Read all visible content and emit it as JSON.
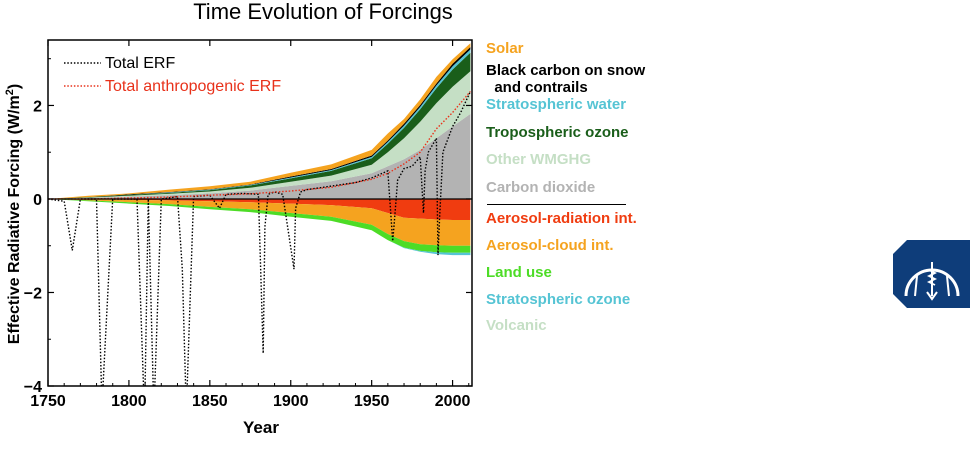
{
  "chart_data": {
    "type": "area",
    "title": "Time Evolution of Forcings",
    "xlabel": "Year",
    "ylabel": "Effective Radiative Forcing (W/m",
    "ylabel_sup": "2",
    "ylabel_close": ")",
    "xlim": [
      1750,
      2012
    ],
    "ylim": [
      -4,
      3.4
    ],
    "xticks": [
      1750,
      1800,
      1850,
      1900,
      1950,
      2000
    ],
    "xtick_labels": [
      "1750",
      "1800",
      "1850",
      "1900",
      "1950",
      "2000"
    ],
    "yticks": [
      -4,
      -2,
      0,
      2
    ],
    "ytick_labels": [
      "−4",
      "−2",
      "0",
      "2"
    ],
    "x": [
      1750,
      1775,
      1800,
      1825,
      1850,
      1875,
      1900,
      1925,
      1950,
      1960,
      1970,
      1980,
      1990,
      2000,
      2011
    ],
    "positive_series": [
      {
        "name": "Carbon dioxide",
        "color": "#b3b3b3",
        "values": [
          0.0,
          0.02,
          0.05,
          0.08,
          0.12,
          0.18,
          0.28,
          0.38,
          0.55,
          0.7,
          0.85,
          1.05,
          1.3,
          1.55,
          1.82
        ]
      },
      {
        "name": "Other WMGHG",
        "color": "#c5dfc5",
        "values": [
          0.0,
          0.01,
          0.02,
          0.03,
          0.04,
          0.06,
          0.09,
          0.12,
          0.18,
          0.3,
          0.45,
          0.6,
          0.75,
          0.85,
          0.91
        ]
      },
      {
        "name": "Tropospheric ozone",
        "color": "#1a5e1a",
        "values": [
          0.0,
          0.01,
          0.02,
          0.02,
          0.03,
          0.05,
          0.07,
          0.1,
          0.14,
          0.18,
          0.22,
          0.27,
          0.32,
          0.37,
          0.4
        ]
      },
      {
        "name": "Stratospheric water",
        "color": "#55c4d4",
        "values": [
          0.0,
          0.0,
          0.0,
          0.01,
          0.01,
          0.01,
          0.02,
          0.02,
          0.03,
          0.04,
          0.05,
          0.05,
          0.06,
          0.07,
          0.07
        ]
      },
      {
        "name": "Black carbon on snow\n  and contrails",
        "color": "#000000",
        "values": [
          0.0,
          0.0,
          0.01,
          0.01,
          0.01,
          0.01,
          0.02,
          0.02,
          0.03,
          0.03,
          0.04,
          0.04,
          0.04,
          0.05,
          0.05
        ]
      },
      {
        "name": "Solar",
        "color": "#f5a31f",
        "values": [
          0.0,
          0.03,
          0.02,
          0.05,
          0.06,
          0.06,
          0.08,
          0.1,
          0.12,
          0.15,
          0.1,
          0.12,
          0.14,
          0.1,
          0.08
        ]
      }
    ],
    "negative_series": [
      {
        "name": "Aerosol-radiation int.",
        "color": "#f03c10",
        "values": [
          0.0,
          -0.01,
          -0.02,
          -0.03,
          -0.05,
          -0.07,
          -0.1,
          -0.13,
          -0.2,
          -0.3,
          -0.4,
          -0.42,
          -0.44,
          -0.45,
          -0.45
        ]
      },
      {
        "name": "Aerosol-cloud int.",
        "color": "#f5a31f",
        "values": [
          0.0,
          -0.02,
          -0.05,
          -0.08,
          -0.12,
          -0.15,
          -0.2,
          -0.25,
          -0.35,
          -0.45,
          -0.5,
          -0.55,
          -0.55,
          -0.55,
          -0.55
        ]
      },
      {
        "name": "Land use",
        "color": "#4ddc26",
        "values": [
          0.0,
          -0.02,
          -0.03,
          -0.04,
          -0.05,
          -0.06,
          -0.08,
          -0.09,
          -0.12,
          -0.13,
          -0.14,
          -0.14,
          -0.15,
          -0.15,
          -0.15
        ]
      },
      {
        "name": "Stratospheric ozone",
        "color": "#55c4d4",
        "values": [
          0.0,
          0.0,
          0.0,
          0.0,
          0.0,
          0.0,
          0.0,
          0.0,
          0.0,
          0.0,
          -0.01,
          -0.02,
          -0.04,
          -0.05,
          -0.05
        ]
      }
    ],
    "volcanic_legend": {
      "name": "Volcanic",
      "color": "#c5dfc5"
    },
    "line_series": [
      {
        "name": "Total ERF",
        "color": "#000000",
        "style": "dotted",
        "x": [
          1750,
          1760,
          1765,
          1770,
          1780,
          1783,
          1784,
          1790,
          1800,
          1805,
          1809,
          1810,
          1812,
          1815,
          1816,
          1820,
          1830,
          1833,
          1835,
          1836,
          1840,
          1850,
          1856,
          1860,
          1870,
          1880,
          1883,
          1884,
          1886,
          1890,
          1895,
          1902,
          1903,
          1906,
          1910,
          1920,
          1930,
          1940,
          1950,
          1960,
          1963,
          1964,
          1966,
          1970,
          1975,
          1980,
          1982,
          1983,
          1985,
          1990,
          1991,
          1992,
          1994,
          2000,
          2005,
          2011
        ],
        "y": [
          0.0,
          -0.05,
          -1.1,
          0.0,
          0.0,
          -4.0,
          -4.0,
          0.0,
          0.0,
          0.0,
          -4.0,
          -4.0,
          0.0,
          -4.0,
          -4.0,
          0.0,
          0.05,
          -1.5,
          -4.0,
          -4.0,
          0.05,
          0.08,
          -0.2,
          0.1,
          0.12,
          0.1,
          -3.3,
          -0.6,
          0.1,
          0.15,
          0.1,
          -1.5,
          -0.2,
          0.15,
          0.2,
          0.25,
          0.3,
          0.35,
          0.45,
          0.6,
          -0.9,
          -0.5,
          0.4,
          0.65,
          0.7,
          0.9,
          -0.3,
          0.6,
          1.0,
          1.3,
          -1.2,
          -0.4,
          1.0,
          1.55,
          1.85,
          2.3
        ]
      },
      {
        "name": "Total anthropogenic ERF",
        "color": "#e8311a",
        "style": "dotted",
        "x": [
          1750,
          1775,
          1800,
          1825,
          1850,
          1875,
          1900,
          1925,
          1950,
          1960,
          1970,
          1980,
          1990,
          2000,
          2011
        ],
        "y": [
          0.0,
          0.0,
          0.02,
          0.04,
          0.08,
          0.11,
          0.17,
          0.25,
          0.42,
          0.55,
          0.75,
          1.0,
          1.5,
          1.85,
          2.3
        ]
      }
    ]
  }
}
